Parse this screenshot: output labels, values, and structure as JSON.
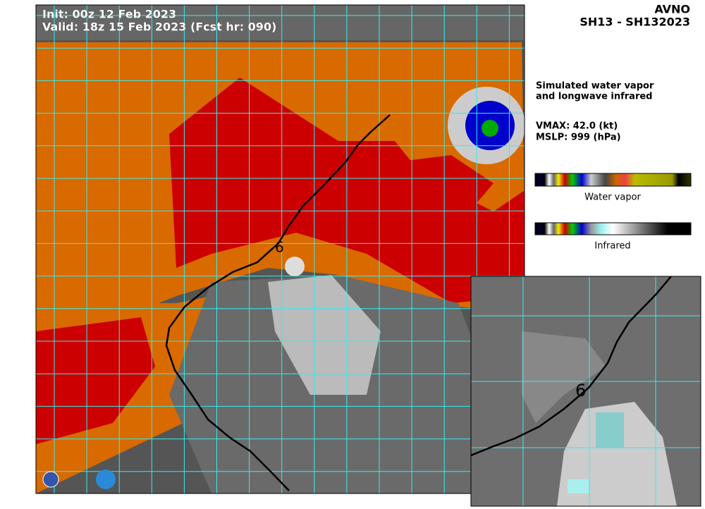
{
  "header": {
    "model": "AVNO",
    "storm": "SH13 - SH132023"
  },
  "map": {
    "init": "Init:   00z 12 Feb 2023",
    "valid": "Valid: 18z 15 Feb 2023 (Fcst hr: 090)"
  },
  "info": {
    "description": [
      "Simulated water vapor",
      "and longwave infrared"
    ],
    "vmax": "VMAX:  42.0 (kt)",
    "mslp": "MSLP:  999 (hPa)"
  },
  "colorbars": [
    {
      "label": "Water vapor"
    },
    {
      "label": "Infrared"
    }
  ]
}
